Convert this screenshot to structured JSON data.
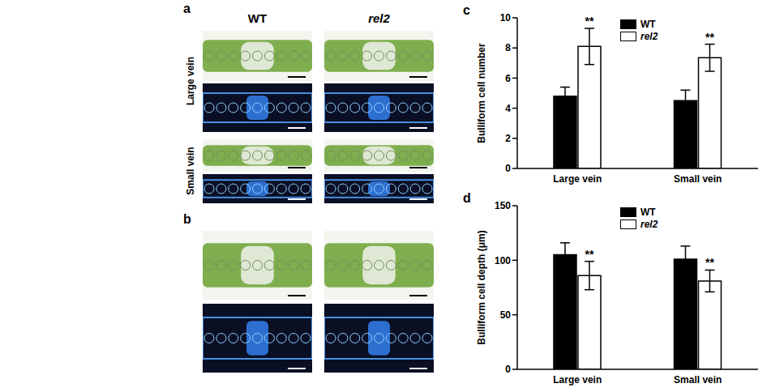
{
  "panels": [
    {
      "label": "a",
      "columns": [
        "WT",
        "rel2"
      ],
      "rows": [
        "Large vein",
        "Small vein"
      ]
    },
    {
      "label": "b"
    }
  ],
  "chart_data": [
    {
      "panel": "c",
      "type": "bar",
      "y_label": "Bulliform cell number",
      "categories": [
        "Large vein",
        "Small vein"
      ],
      "ylim": [
        0,
        10
      ],
      "yticks": [
        0,
        2,
        4,
        6,
        8,
        10
      ],
      "legend": "upper center",
      "series": [
        {
          "name": "WT",
          "color": "#000000",
          "values": [
            4.8,
            4.5
          ],
          "errors": [
            0.6,
            0.7
          ]
        },
        {
          "name": "rel2",
          "color": "#ffffff",
          "values": [
            8.1,
            7.35
          ],
          "errors": [
            1.2,
            0.9
          ],
          "annotations": [
            "**",
            "**"
          ]
        }
      ]
    },
    {
      "panel": "d",
      "type": "bar",
      "y_label": "Bulliform cell depth (μm)",
      "categories": [
        "Large vein",
        "Small vein"
      ],
      "ylim": [
        0,
        150
      ],
      "yticks": [
        0,
        50,
        100,
        150
      ],
      "legend": "upper center",
      "series": [
        {
          "name": "WT",
          "color": "#000000",
          "values": [
            105,
            101
          ],
          "errors": [
            11,
            12
          ]
        },
        {
          "name": "rel2",
          "color": "#ffffff",
          "values": [
            86,
            81
          ],
          "errors": [
            13,
            10
          ],
          "annotations": [
            "**",
            "**"
          ]
        }
      ]
    }
  ]
}
